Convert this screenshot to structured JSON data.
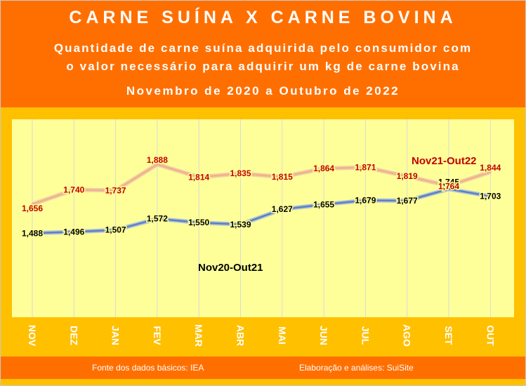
{
  "header": {
    "title": "CARNE SUÍNA X CARNE BOVINA",
    "subtitle_line1": "Quantidade de carne suína adquirida pelo consumidor com",
    "subtitle_line2": "o valor necessário para adquirir um kg de carne bovina",
    "period": "Novembro de 2020 a Outubro de 2022"
  },
  "footer": {
    "source": "Fonte dos dados básicos: IEA",
    "credits": "Elaboração e análises: SuiSite"
  },
  "colors": {
    "header_bg": "#ff6f00",
    "frame_bg": "#ffc000",
    "plot_bg": "#ffff99",
    "series1_line": "#5b7fc8",
    "series2_line": "#f3b089",
    "series1_label": "#000000",
    "series2_label": "#c00000"
  },
  "chart_data": {
    "type": "line",
    "categories": [
      "NOV",
      "DEZ",
      "JAN",
      "FEV",
      "MAR",
      "ABR",
      "MAI",
      "JUN",
      "JUL",
      "AGO",
      "SET",
      "OUT"
    ],
    "ylim": [
      1.0,
      2.15
    ],
    "grid": "vertical",
    "series": [
      {
        "name": "Nov20-Out21",
        "values": [
          1.488,
          1.496,
          1.507,
          1.572,
          1.55,
          1.539,
          1.627,
          1.655,
          1.679,
          1.677,
          1.745,
          1.703
        ],
        "labels": [
          "1,488",
          "1,496",
          "1,507",
          "1,572",
          "1,550",
          "1,539",
          "1,627",
          "1,655",
          "1,679",
          "1,677",
          "1,745",
          "1,703"
        ]
      },
      {
        "name": "Nov21-Out22",
        "values": [
          1.656,
          1.74,
          1.737,
          1.888,
          1.814,
          1.835,
          1.815,
          1.864,
          1.871,
          1.819,
          1.764,
          1.844
        ],
        "labels": [
          "1,656",
          "1,740",
          "1,737",
          "1,888",
          "1,814",
          "1,835",
          "1,815",
          "1,864",
          "1,871",
          "1,819",
          "1,764",
          "1,844"
        ]
      }
    ]
  }
}
